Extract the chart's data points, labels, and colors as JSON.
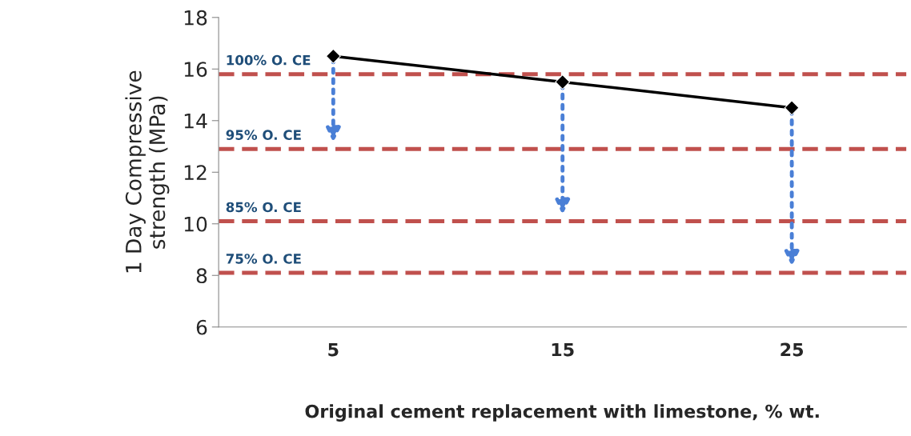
{
  "chart_data": {
    "type": "line",
    "xlabel": "Original cement replacement with limestone, % wt.",
    "ylabel": "1 Day Compressive strength (MPa)",
    "categories": [
      "5",
      "15",
      "25"
    ],
    "series": [
      {
        "color": "#000000",
        "values": [
          16.5,
          15.5,
          14.5
        ]
      }
    ],
    "marker": "diamond",
    "line_style": "solid",
    "grid": false,
    "ylim": [
      6,
      18
    ],
    "yticks": [
      6,
      8,
      10,
      12,
      14,
      16,
      18
    ],
    "ref_lines": [
      {
        "axis": "y",
        "value": 15.8,
        "label": "100% O. CE",
        "color": "#c0504d",
        "line_style": "dashed"
      },
      {
        "axis": "y",
        "value": 12.9,
        "label": "95% O. CE",
        "color": "#c0504d",
        "line_style": "dashed"
      },
      {
        "axis": "y",
        "value": 10.1,
        "label": "85% O. CE",
        "color": "#c0504d",
        "line_style": "dashed"
      },
      {
        "axis": "y",
        "value": 8.1,
        "label": "75% O. CE",
        "color": "#c0504d",
        "line_style": "dashed"
      }
    ]
  }
}
